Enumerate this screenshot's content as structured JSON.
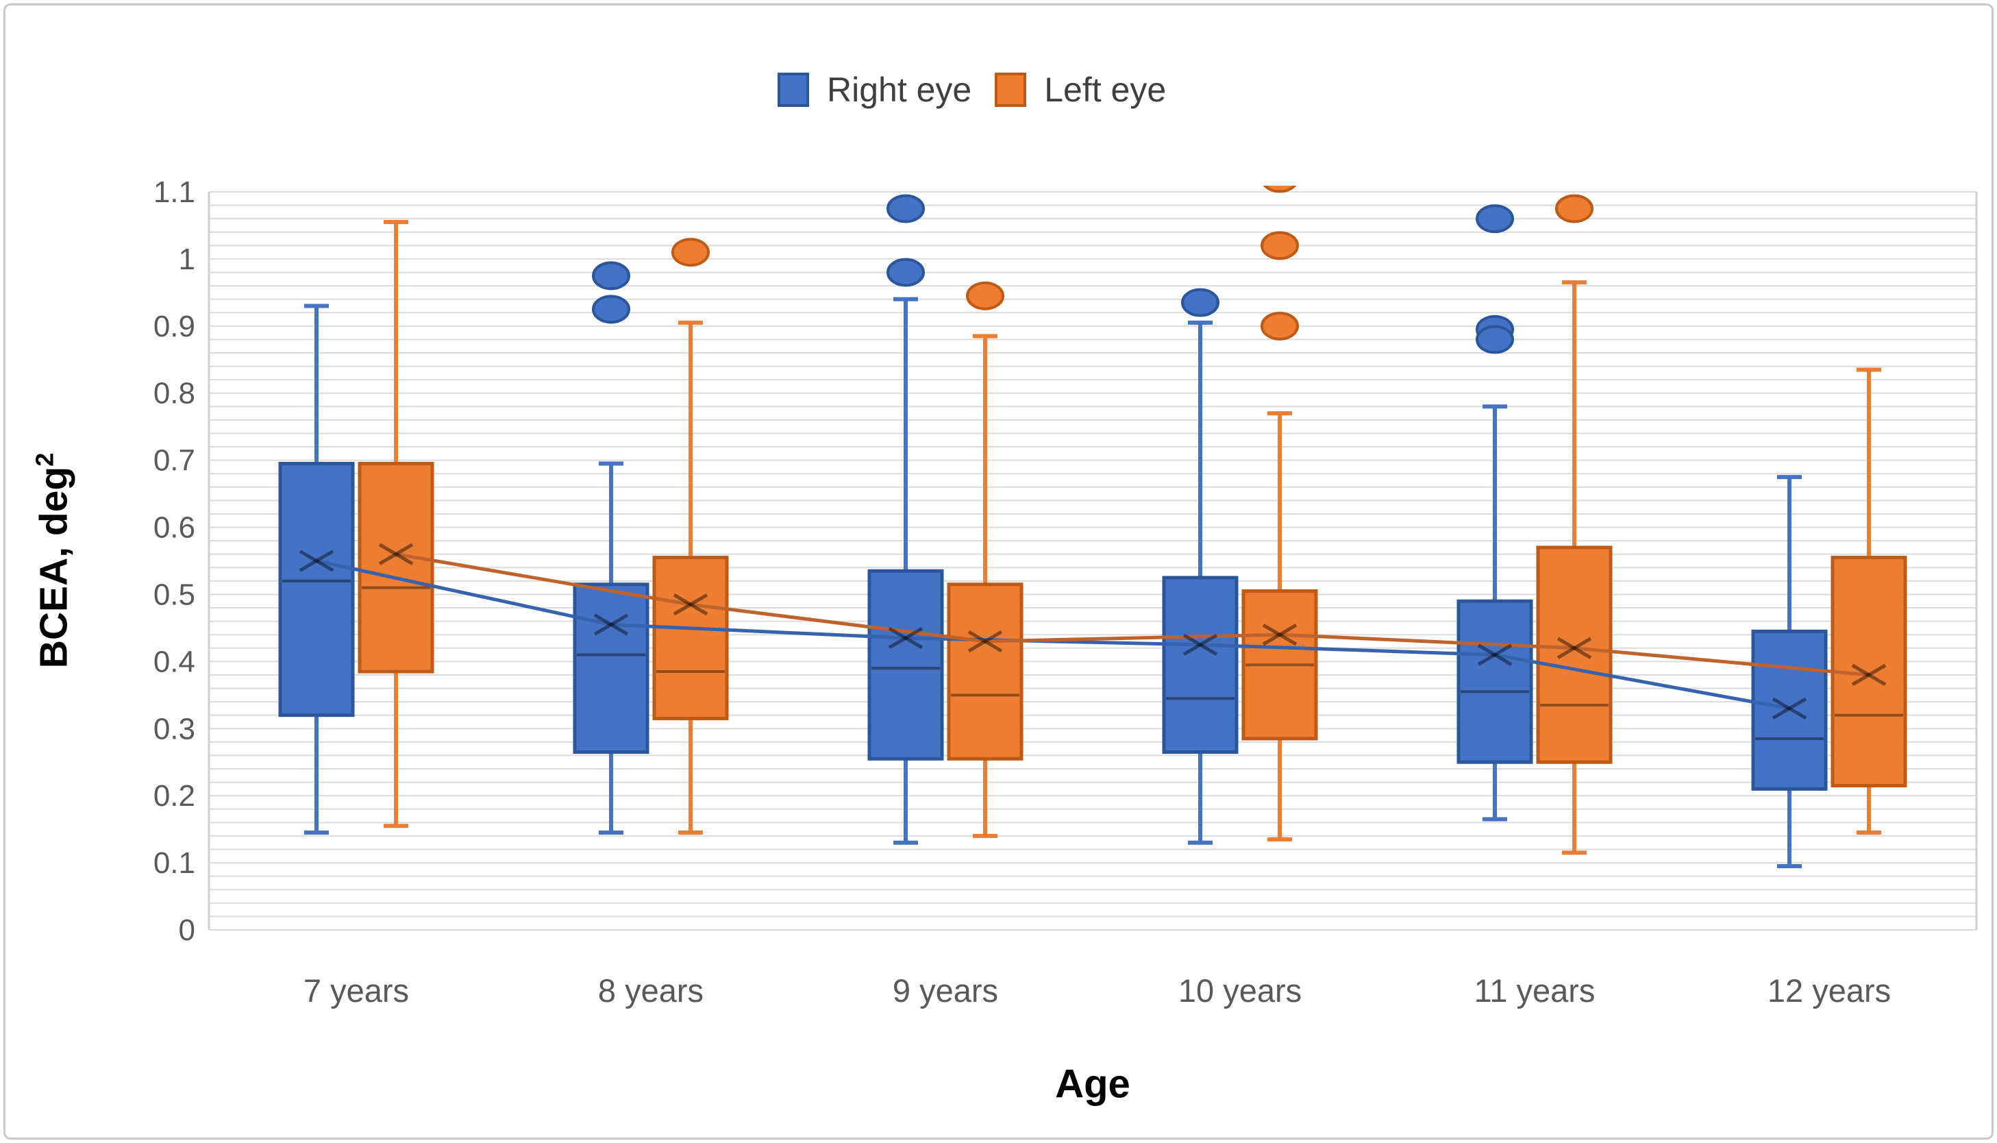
{
  "figure": {
    "background": "#ffffff",
    "border_color": "#c9c9c9",
    "grid_color": "#dbdbdb",
    "frame_color": "#cfcfcf",
    "tick_label_color": "#595959",
    "title_color": "#000000",
    "legend_text_color": "#3f3f3f"
  },
  "legend": [
    {
      "label": "Right eye",
      "color": "#4472C4",
      "edge": "#2B569B"
    },
    {
      "label": "Left eye",
      "color": "#ED7D31",
      "edge": "#BE5A15"
    }
  ],
  "chart_data": {
    "type": "box",
    "title": "",
    "xlabel": "Age",
    "ylabel_main": "BCEA, deg",
    "ylabel_sup": "2",
    "categories": [
      "7 years",
      "8 years",
      "9 years",
      "10 years",
      "11 years",
      "12 years"
    ],
    "y_axis": {
      "min": 0,
      "max": 1.1,
      "major_tick_step": 0.1,
      "minor_grid_step": 0.02,
      "tick_labels": [
        "0",
        "0.1",
        "0.2",
        "0.3",
        "0.4",
        "0.5",
        "0.6",
        "0.7",
        "0.8",
        "0.9",
        "1",
        "1.1"
      ],
      "grid": "on"
    },
    "legend_position": "top-center",
    "series": [
      {
        "name": "Right eye",
        "fill": "#4472C4",
        "edge": "#2B569B",
        "mean_line_color": "#3763AE",
        "boxes": [
          {
            "category": "7 years",
            "whisker_low": 0.145,
            "q1": 0.32,
            "median": 0.52,
            "q3": 0.695,
            "whisker_high": 0.93,
            "mean": 0.55,
            "outliers": []
          },
          {
            "category": "8 years",
            "whisker_low": 0.145,
            "q1": 0.265,
            "median": 0.41,
            "q3": 0.515,
            "whisker_high": 0.695,
            "mean": 0.455,
            "outliers": [
              0.975,
              0.925
            ]
          },
          {
            "category": "9 years",
            "whisker_low": 0.13,
            "q1": 0.255,
            "median": 0.39,
            "q3": 0.535,
            "whisker_high": 0.94,
            "mean": 0.435,
            "outliers": [
              1.075,
              0.98
            ]
          },
          {
            "category": "10 years",
            "whisker_low": 0.13,
            "q1": 0.265,
            "median": 0.345,
            "q3": 0.525,
            "whisker_high": 0.905,
            "mean": 0.425,
            "outliers": [
              0.935
            ]
          },
          {
            "category": "11 years",
            "whisker_low": 0.165,
            "q1": 0.25,
            "median": 0.355,
            "q3": 0.49,
            "whisker_high": 0.78,
            "mean": 0.41,
            "outliers": [
              1.06,
              0.895,
              0.88
            ]
          },
          {
            "category": "12 years",
            "whisker_low": 0.095,
            "q1": 0.21,
            "median": 0.285,
            "q3": 0.445,
            "whisker_high": 0.675,
            "mean": 0.33,
            "outliers": []
          }
        ]
      },
      {
        "name": "Left eye",
        "fill": "#ED7D31",
        "edge": "#BE5A15",
        "mean_line_color": "#C0622B",
        "boxes": [
          {
            "category": "7 years",
            "whisker_low": 0.155,
            "q1": 0.385,
            "median": 0.51,
            "q3": 0.695,
            "whisker_high": 1.055,
            "mean": 0.56,
            "outliers": []
          },
          {
            "category": "8 years",
            "whisker_low": 0.145,
            "q1": 0.315,
            "median": 0.385,
            "q3": 0.555,
            "whisker_high": 0.905,
            "mean": 0.485,
            "outliers": [
              1.01
            ]
          },
          {
            "category": "9 years",
            "whisker_low": 0.14,
            "q1": 0.255,
            "median": 0.35,
            "q3": 0.515,
            "whisker_high": 0.885,
            "mean": 0.43,
            "outliers": [
              0.945
            ]
          },
          {
            "category": "10 years",
            "whisker_low": 0.135,
            "q1": 0.285,
            "median": 0.395,
            "q3": 0.505,
            "whisker_high": 0.77,
            "mean": 0.44,
            "outliers": [
              1.12,
              1.02,
              0.9
            ]
          },
          {
            "category": "11 years",
            "whisker_low": 0.115,
            "q1": 0.25,
            "median": 0.335,
            "q3": 0.57,
            "whisker_high": 0.965,
            "mean": 0.42,
            "outliers": [
              1.075
            ]
          },
          {
            "category": "12 years",
            "whisker_low": 0.145,
            "q1": 0.215,
            "median": 0.32,
            "q3": 0.555,
            "whisker_high": 0.835,
            "mean": 0.38,
            "outliers": []
          }
        ]
      }
    ]
  }
}
